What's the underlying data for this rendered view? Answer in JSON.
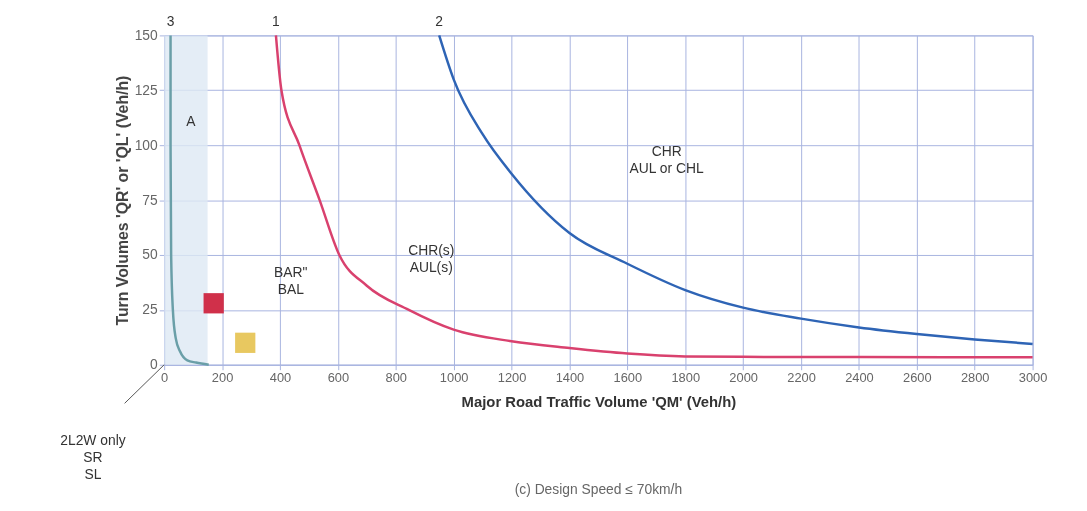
{
  "chart_data": {
    "type": "line",
    "title": "(c) Design Speed ≤ 70km/h",
    "xlabel": "Major Road Traffic Volume 'QM' (Veh/h)",
    "ylabel": "Turn Volumes 'QR' or 'QL' (Veh/h)",
    "xlim": [
      0,
      3000
    ],
    "xticks": [
      0,
      200,
      400,
      600,
      800,
      1000,
      1200,
      1400,
      1600,
      1800,
      2000,
      2200,
      2400,
      2600,
      2800,
      3000
    ],
    "ylim": [
      0,
      150
    ],
    "yticks": [
      0,
      25,
      50,
      75,
      100,
      125,
      150
    ],
    "grid": true,
    "marker": "none",
    "line_style": "solid",
    "series": [
      {
        "color": "#6a9fa8",
        "x": [
          22,
          22,
          24,
          30,
          40,
          55,
          80,
          110,
          154
        ],
        "values": [
          150,
          100,
          50,
          25,
          12,
          6,
          2,
          1,
          0
        ]
      },
      {
        "color": "#d9416e",
        "x": [
          386,
          405,
          467,
          537,
          605,
          700,
          845,
          1000,
          1200,
          1400,
          1600,
          1800,
          2000,
          2400,
          3000
        ],
        "values": [
          150,
          125,
          100,
          75,
          50,
          36,
          25,
          16,
          10.7,
          7.6,
          5.1,
          3.8,
          3.6,
          3.5,
          3.4
        ]
      },
      {
        "color": "#2e64b5",
        "x": [
          950,
          1000,
          1100,
          1200,
          1400,
          1600,
          1800,
          2000,
          2200,
          2400,
          2600,
          2800,
          3000
        ],
        "values": [
          150,
          130,
          105,
          87,
          60,
          46,
          34,
          26,
          21,
          17,
          14,
          11.5,
          9.5
        ]
      },
      {
        "type": "scatter",
        "marker": "square",
        "color": "#d0304a",
        "x": [
          171
        ],
        "values": [
          28
        ]
      },
      {
        "type": "scatter",
        "marker": "square",
        "color": "#e8c860",
        "x": [
          280
        ],
        "values": [
          10
        ]
      }
    ],
    "bands": [
      {
        "axis": "x",
        "from": 0,
        "to": 150,
        "color": "#dde8f4"
      }
    ],
    "annotations": [
      {
        "text": "3",
        "x": 22,
        "y": 150
      },
      {
        "text": "1",
        "x": 386,
        "y": 150
      },
      {
        "text": "2",
        "x": 950,
        "y": 150
      },
      "A",
      "BAR\"\nBAL",
      "CHR(s)\nAUL(s)",
      "CHR\nAUL  or CHL",
      "2L2W only\nSR\nSL"
    ]
  }
}
